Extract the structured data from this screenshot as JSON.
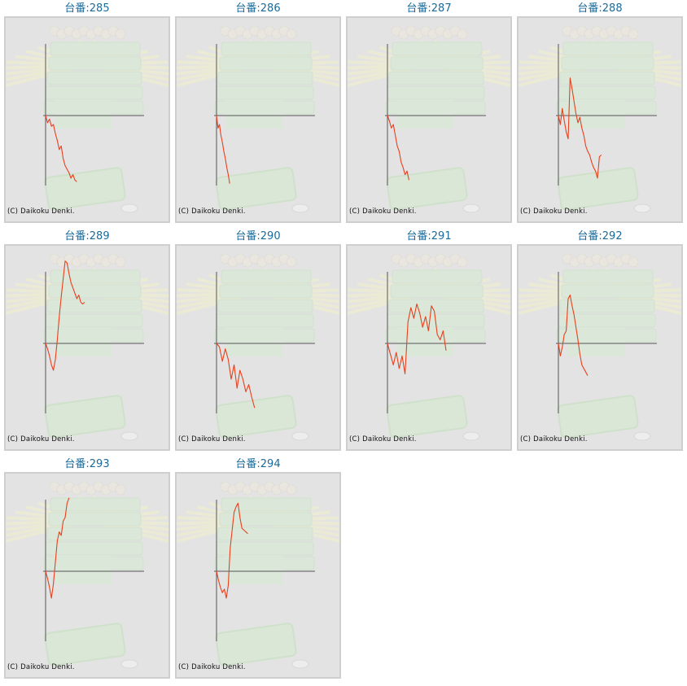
{
  "copyright": "(C) Daikoku Denki.",
  "colors": {
    "title": "#1a6a9a",
    "line": "#e8401c",
    "axis": "#555555",
    "panel": "#e3e3e3"
  },
  "chart_data": [
    {
      "type": "line",
      "title": "台番:285",
      "x": [
        0,
        4,
        8,
        12,
        16,
        20,
        24,
        28,
        32,
        36,
        40,
        44,
        48,
        52,
        56,
        60,
        64
      ],
      "y": [
        0,
        -8,
        -4,
        -12,
        -10,
        -20,
        -28,
        -38,
        -34,
        -48,
        -56,
        -60,
        -64,
        -70,
        -66,
        -72,
        -74
      ],
      "ylim": [
        -90,
        80
      ]
    },
    {
      "type": "line",
      "title": "台番:286",
      "x": [
        0,
        3,
        6,
        9,
        12,
        15,
        18,
        21,
        24,
        27
      ],
      "y": [
        0,
        -14,
        -10,
        -22,
        -30,
        -40,
        -48,
        -58,
        -66,
        -76
      ],
      "ylim": [
        -90,
        80
      ]
    },
    {
      "type": "line",
      "title": "台番:287",
      "x": [
        0,
        4,
        8,
        12,
        16,
        20,
        24,
        28,
        32,
        36,
        40,
        44
      ],
      "y": [
        0,
        -6,
        -14,
        -10,
        -22,
        -34,
        -40,
        -52,
        -58,
        -66,
        -62,
        -72
      ],
      "ylim": [
        -90,
        80
      ]
    },
    {
      "type": "line",
      "title": "台番:288",
      "x": [
        0,
        4,
        8,
        12,
        16,
        20,
        24,
        28,
        32,
        36,
        40,
        44,
        48,
        52,
        56,
        60,
        64,
        68,
        72,
        76,
        80,
        84,
        88
      ],
      "y": [
        0,
        -10,
        8,
        -6,
        -18,
        -26,
        42,
        30,
        16,
        2,
        -8,
        -2,
        -14,
        -22,
        -34,
        -40,
        -44,
        -52,
        -58,
        -62,
        -70,
        -46,
        -44
      ],
      "ylim": [
        -90,
        80
      ]
    },
    {
      "type": "line",
      "title": "台番:289",
      "x": [
        0,
        4,
        8,
        12,
        16,
        20,
        24,
        28,
        32,
        36,
        40,
        44,
        48,
        52,
        56,
        60,
        64,
        68,
        72,
        76,
        80
      ],
      "y": [
        0,
        -6,
        -14,
        -24,
        -30,
        -18,
        4,
        30,
        52,
        72,
        92,
        90,
        78,
        68,
        62,
        56,
        50,
        54,
        46,
        44,
        46
      ],
      "ylim": [
        -90,
        80
      ]
    },
    {
      "type": "line",
      "title": "台番:290",
      "x": [
        0,
        6,
        12,
        18,
        24,
        30,
        36,
        42,
        48,
        54,
        60,
        66,
        72,
        78
      ],
      "y": [
        0,
        -4,
        -20,
        -6,
        -18,
        -40,
        -24,
        -50,
        -30,
        -40,
        -54,
        -46,
        -60,
        -72
      ],
      "ylim": [
        -90,
        80
      ]
    },
    {
      "type": "line",
      "title": "台番:291",
      "x": [
        0,
        6,
        12,
        18,
        24,
        30,
        36,
        42,
        48,
        54,
        60,
        66,
        72,
        78,
        84,
        90,
        96,
        102,
        108,
        114,
        120
      ],
      "y": [
        0,
        -12,
        -24,
        -10,
        -28,
        -14,
        -34,
        24,
        40,
        28,
        44,
        34,
        18,
        30,
        14,
        42,
        36,
        10,
        4,
        14,
        -8
      ],
      "ylim": [
        -90,
        80
      ]
    },
    {
      "type": "line",
      "title": "台番:292",
      "x": [
        0,
        4,
        8,
        12,
        16,
        20,
        24,
        28,
        32,
        36,
        40,
        44,
        48,
        52,
        56,
        60
      ],
      "y": [
        0,
        -14,
        -4,
        10,
        14,
        50,
        54,
        42,
        32,
        18,
        4,
        -12,
        -24,
        -28,
        -32,
        -36
      ],
      "ylim": [
        -90,
        80
      ]
    },
    {
      "type": "line",
      "title": "台番:293",
      "x": [
        0,
        4,
        8,
        12,
        16,
        20,
        24,
        28,
        32,
        36,
        40,
        44,
        48
      ],
      "y": [
        0,
        -8,
        -18,
        -30,
        -14,
        10,
        34,
        44,
        40,
        56,
        60,
        76,
        82
      ],
      "ylim": [
        -90,
        80
      ]
    },
    {
      "type": "line",
      "title": "台番:294",
      "x": [
        0,
        4,
        8,
        12,
        16,
        20,
        24,
        28,
        32,
        36,
        40,
        44,
        48,
        52,
        56,
        60,
        64
      ],
      "y": [
        0,
        -10,
        -18,
        -24,
        -20,
        -30,
        -16,
        26,
        46,
        66,
        72,
        76,
        60,
        48,
        46,
        44,
        42
      ],
      "ylim": [
        -90,
        80
      ]
    }
  ]
}
